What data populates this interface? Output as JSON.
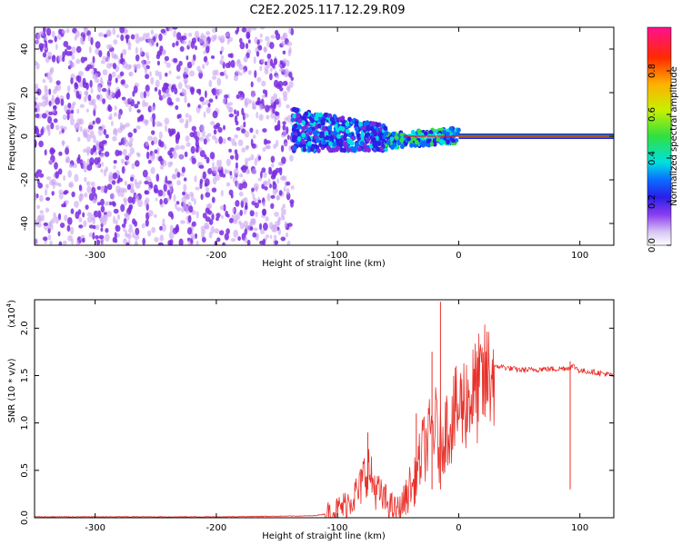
{
  "title": "C2E2.2025.117.12.29.R09",
  "colors": {
    "snr_line": "#e8312b",
    "scatter_purple": "#7a2ce0",
    "scatter_light": "#c9a4f2",
    "trace_line": "#e02020",
    "trace_green": "#30c020"
  },
  "chart_data": [
    {
      "type": "heatmap",
      "title": "",
      "xlabel": "Height of straight line (km)",
      "ylabel": "Frequency (Hz)",
      "xlim": [
        -350,
        128
      ],
      "ylim": [
        -50,
        50
      ],
      "xticks": [
        -300,
        -200,
        -100,
        0,
        100
      ],
      "yticks": [
        -40,
        -20,
        0,
        20,
        40
      ],
      "grid": false,
      "colorbar": {
        "label": "Normalized spectral amplitude",
        "range": [
          0,
          1
        ],
        "ticks": [
          "0.0",
          "0.2",
          "0.4",
          "0.6",
          "0.8"
        ],
        "colormap": [
          "#ffffff",
          "#d9c6f5",
          "#8a3df0",
          "#2a1ee8",
          "#0a6cff",
          "#00e0e0",
          "#30e040",
          "#c8f000",
          "#ffb000",
          "#ff2a00",
          "#ff1090"
        ]
      },
      "regions": [
        {
          "name": "noise",
          "x_range": [
            -350,
            -137
          ],
          "freq_range": [
            -50,
            50
          ],
          "amplitude": [
            0.0,
            0.15
          ]
        },
        {
          "name": "signal_onset",
          "x_range": [
            -137,
            -60
          ],
          "freq_range": [
            -12,
            14
          ],
          "amplitude": [
            0.1,
            0.45
          ]
        },
        {
          "name": "converging",
          "x_range": [
            -60,
            0
          ],
          "freq_range": [
            -6,
            6
          ],
          "amplitude": [
            0.2,
            0.5
          ]
        },
        {
          "name": "steady_tone",
          "x_range": [
            0,
            128
          ],
          "freq": 0,
          "amplitude": 0.9
        }
      ]
    },
    {
      "type": "line",
      "title": "",
      "xlabel": "Height of straight line (km)",
      "ylabel": "SNR (10 * v/v)",
      "y_multiplier_label": "(x10",
      "y_multiplier_exp": "4",
      "xlim": [
        -350,
        128
      ],
      "ylim": [
        0,
        2.3
      ],
      "xticks": [
        -300,
        -200,
        -100,
        0,
        100
      ],
      "yticks": [
        "0.0",
        "0.5",
        "1.0",
        "1.5",
        "2.0"
      ],
      "grid": false,
      "series": [
        {
          "x": [
            -350,
            -200,
            -120,
            -105,
            -95,
            -88,
            -82,
            -78,
            -75,
            -72,
            -68,
            -64,
            -60,
            -56,
            -52,
            -48,
            -45,
            -42,
            -40,
            -38,
            -35,
            -32,
            -30,
            -28,
            -25,
            -22,
            -20,
            -18,
            -16,
            -14,
            -12,
            -10,
            -8,
            -5,
            -2,
            0,
            3,
            6,
            10,
            14,
            18,
            22,
            26,
            30,
            34,
            40,
            50,
            60,
            70,
            80,
            90,
            95,
            100,
            110,
            120,
            128
          ],
          "y": [
            0.01,
            0.01,
            0.02,
            0.05,
            0.12,
            0.22,
            0.28,
            0.45,
            0.55,
            0.4,
            0.3,
            0.22,
            0.18,
            0.12,
            0.08,
            0.1,
            0.18,
            0.25,
            0.35,
            0.3,
            0.45,
            0.6,
            0.7,
            0.75,
            0.8,
            0.95,
            1.0,
            0.9,
            0.7,
            0.85,
            0.9,
            0.95,
            1.0,
            1.05,
            1.1,
            1.15,
            1.2,
            1.25,
            1.28,
            1.32,
            1.38,
            1.45,
            1.52,
            1.58,
            1.6,
            1.58,
            1.56,
            1.56,
            1.57,
            1.57,
            1.58,
            1.6,
            1.55,
            1.54,
            1.52,
            1.5
          ],
          "spikes": [
            {
              "x": -75,
              "y": 0.9
            },
            {
              "x": -35,
              "y": 1.1
            },
            {
              "x": -22,
              "y": 1.75
            },
            {
              "x": -15,
              "y": 2.28
            },
            {
              "x": 92,
              "y": 1.65
            }
          ]
        }
      ]
    }
  ]
}
